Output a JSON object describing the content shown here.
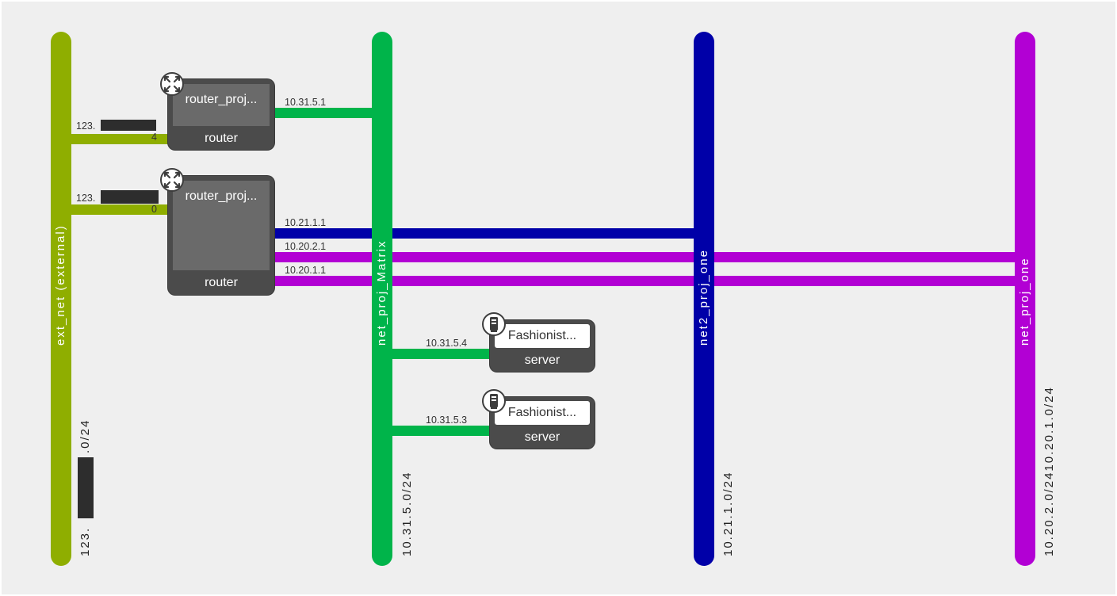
{
  "networks": {
    "ext_net": {
      "name": "ext_net (external)",
      "cidr_prefix": "123.",
      "cidr_suffix": ".0/24",
      "color": "#8fae00"
    },
    "net_proj_matrix": {
      "name": "net_proj_Matrix",
      "cidr": "10.31.5.0/24",
      "color": "#00b44a"
    },
    "net2_proj_one": {
      "name": "net2_proj_one",
      "cidr": "10.21.1.0/24",
      "color": "#0000a8"
    },
    "net_proj_one": {
      "name": "net_proj_one",
      "cidr": "10.20.2.0/2410.20.1.0/24",
      "color": "#b200d4"
    }
  },
  "routers": [
    {
      "name": "router_proj...",
      "type": "router",
      "ext_ip_prefix": "123.",
      "ext_ip_suffix": "4",
      "ports": [
        "10.31.5.1"
      ]
    },
    {
      "name": "router_proj...",
      "type": "router",
      "ext_ip_prefix": "123.",
      "ext_ip_suffix": "0",
      "ports": [
        "10.21.1.1",
        "10.20.2.1",
        "10.20.1.1"
      ]
    }
  ],
  "servers": [
    {
      "name": "Fashionist...",
      "type": "server",
      "ip": "10.31.5.4"
    },
    {
      "name": "Fashionist...",
      "type": "server",
      "ip": "10.31.5.3"
    }
  ],
  "icons": {
    "router": "router-arrows-icon",
    "server": "server-tower-icon"
  }
}
